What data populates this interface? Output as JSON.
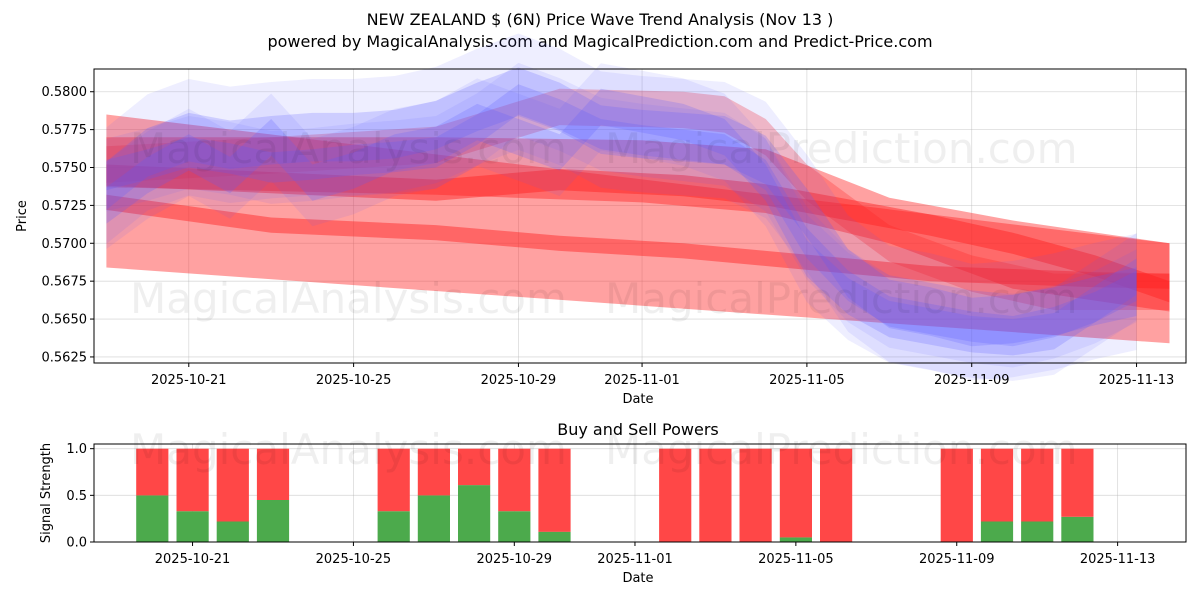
{
  "title_line1": "NEW ZEALAND $ (6N) Price Wave Trend Analysis (Nov 13 )",
  "title_line2": "powered by MagicalAnalysis.com and MagicalPrediction.com and Predict-Price.com",
  "watermarks": [
    "MagicalAnalysis.com",
    "MagicalPrediction.com"
  ],
  "chart_data": [
    {
      "type": "area",
      "title": "",
      "xlabel": "Date",
      "ylabel": "Price",
      "xlim": [
        "2025-10-18.7",
        "2025-11-14.2"
      ],
      "ylim": [
        0.5621,
        0.5815
      ],
      "x_ticks": [
        "2025-10-21",
        "2025-10-25",
        "2025-10-29",
        "2025-11-01",
        "2025-11-05",
        "2025-11-09",
        "2025-11-13"
      ],
      "y_ticks": [
        "0.5625",
        "0.5650",
        "0.5675",
        "0.5700",
        "0.5725",
        "0.5750",
        "0.5775",
        "0.5800"
      ],
      "grid": true,
      "blue_series": [
        {
          "name": "blue-wave-1",
          "x": [
            "2025-10-19",
            "2025-10-20",
            "2025-10-21",
            "2025-10-22",
            "2025-10-23",
            "2025-10-24",
            "2025-10-25",
            "2025-10-26",
            "2025-10-27",
            "2025-10-28",
            "2025-10-29",
            "2025-10-30",
            "2025-10-31",
            "2025-11-01",
            "2025-11-02",
            "2025-11-03",
            "2025-11-04",
            "2025-11-05",
            "2025-11-06",
            "2025-11-07",
            "2025-11-08",
            "2025-11-09",
            "2025-11-10",
            "2025-11-11",
            "2025-11-12",
            "2025-11-13"
          ],
          "values": [
            0.5745,
            0.5752,
            0.576,
            0.5756,
            0.575,
            0.5752,
            0.5755,
            0.5757,
            0.576,
            0.5775,
            0.5795,
            0.5785,
            0.5772,
            0.5768,
            0.5765,
            0.5762,
            0.5745,
            0.57,
            0.5672,
            0.5655,
            0.565,
            0.5645,
            0.5642,
            0.5648,
            0.5658,
            0.5672
          ],
          "half_width": 0.001
        },
        {
          "name": "blue-wave-2",
          "x": [
            "2025-10-19",
            "2025-10-20",
            "2025-10-21",
            "2025-10-22",
            "2025-10-23",
            "2025-10-24",
            "2025-10-25",
            "2025-10-26",
            "2025-10-27",
            "2025-10-28",
            "2025-10-29",
            "2025-10-30",
            "2025-10-31",
            "2025-11-01",
            "2025-11-02",
            "2025-11-03",
            "2025-11-04",
            "2025-11-05",
            "2025-11-06",
            "2025-11-07",
            "2025-11-08",
            "2025-11-09",
            "2025-11-10",
            "2025-11-11",
            "2025-11-12",
            "2025-11-13"
          ],
          "values": [
            0.5738,
            0.576,
            0.577,
            0.5765,
            0.5768,
            0.577,
            0.577,
            0.5772,
            0.5778,
            0.579,
            0.58,
            0.579,
            0.5775,
            0.5772,
            0.577,
            0.5768,
            0.5755,
            0.572,
            0.568,
            0.566,
            0.5655,
            0.5648,
            0.565,
            0.5655,
            0.5662,
            0.5668
          ],
          "half_width": 0.0016
        },
        {
          "name": "blue-wave-3",
          "x": [
            "2025-10-19",
            "2025-10-20",
            "2025-10-21",
            "2025-10-22",
            "2025-10-23",
            "2025-10-24",
            "2025-10-25",
            "2025-10-26",
            "2025-10-27",
            "2025-10-28",
            "2025-10-29",
            "2025-10-30",
            "2025-10-31",
            "2025-11-01",
            "2025-11-02",
            "2025-11-03",
            "2025-11-04",
            "2025-11-05",
            "2025-11-06",
            "2025-11-07",
            "2025-11-08",
            "2025-11-09",
            "2025-11-10",
            "2025-11-11",
            "2025-11-12",
            "2025-11-13"
          ],
          "values": [
            0.5725,
            0.5745,
            0.576,
            0.5745,
            0.577,
            0.574,
            0.5748,
            0.576,
            0.5765,
            0.578,
            0.577,
            0.576,
            0.579,
            0.5785,
            0.578,
            0.577,
            0.574,
            0.569,
            0.5665,
            0.565,
            0.5645,
            0.564,
            0.5638,
            0.5642,
            0.566,
            0.5678
          ],
          "half_width": 0.0012
        }
      ],
      "red_series": [
        {
          "name": "red-band-wide",
          "x": [
            "2025-10-19",
            "2025-11-13.8"
          ],
          "lower": [
            0.5684,
            0.5634
          ],
          "upper": [
            0.5785,
            0.57
          ]
        },
        {
          "name": "red-band-mid",
          "x": [
            "2025-10-19",
            "2025-10-27",
            "2025-11-01",
            "2025-11-04",
            "2025-11-07",
            "2025-11-10",
            "2025-11-13.8"
          ],
          "lower": [
            0.5737,
            0.5732,
            0.5727,
            0.572,
            0.57,
            0.567,
            0.5655
          ],
          "upper": [
            0.577,
            0.577,
            0.5768,
            0.5762,
            0.573,
            0.5715,
            0.57
          ]
        },
        {
          "name": "red-wave-upper",
          "x": [
            "2025-10-19",
            "2025-10-23",
            "2025-10-27",
            "2025-10-30",
            "2025-11-02",
            "2025-11-04",
            "2025-11-06",
            "2025-11-08",
            "2025-11-10",
            "2025-11-12",
            "2025-11-13.8"
          ],
          "values": [
            0.5745,
            0.574,
            0.5735,
            0.5742,
            0.5738,
            0.5732,
            0.5722,
            0.5712,
            0.57,
            0.5685,
            0.5668
          ],
          "half_width": 0.0007
        },
        {
          "name": "red-wave-lower",
          "x": [
            "2025-10-19",
            "2025-10-23",
            "2025-10-27",
            "2025-10-30",
            "2025-11-02",
            "2025-11-04",
            "2025-11-06",
            "2025-11-08",
            "2025-11-10",
            "2025-11-12",
            "2025-11-13.8"
          ],
          "values": [
            0.5727,
            0.5712,
            0.5707,
            0.57,
            0.5695,
            0.569,
            0.5685,
            0.568,
            0.5678,
            0.5676,
            0.5675
          ],
          "half_width": 0.0005
        },
        {
          "name": "red-wave-top",
          "x": [
            "2025-10-19",
            "2025-10-23",
            "2025-10-27",
            "2025-10-30",
            "2025-11-02",
            "2025-11-03",
            "2025-11-04",
            "2025-11-05",
            "2025-11-07",
            "2025-11-09",
            "2025-11-11",
            "2025-11-13.8"
          ],
          "values": [
            0.5752,
            0.5758,
            0.5765,
            0.579,
            0.5788,
            0.5785,
            0.577,
            0.574,
            0.57,
            0.568,
            0.5668,
            0.5668
          ],
          "half_width": 0.0012
        }
      ]
    },
    {
      "type": "bar",
      "title": "Buy and Sell Powers",
      "xlabel": "Date",
      "ylabel": "Signal Strength",
      "ylim": [
        0,
        1.05
      ],
      "y_ticks": [
        "0.0",
        "0.5",
        "1.0"
      ],
      "x_ticks": [
        "2025-10-21",
        "2025-10-25",
        "2025-10-29",
        "2025-11-01",
        "2025-11-05",
        "2025-11-09",
        "2025-11-13"
      ],
      "series": [
        {
          "name": "Buy",
          "color": "#4caa4c"
        },
        {
          "name": "Sell",
          "color": "#ff4747"
        }
      ],
      "bars": [
        {
          "date": "2025-10-20",
          "buy": 0.5,
          "sell": 0.5
        },
        {
          "date": "2025-10-21",
          "buy": 0.33,
          "sell": 0.67
        },
        {
          "date": "2025-10-22",
          "buy": 0.22,
          "sell": 0.78
        },
        {
          "date": "2025-10-23",
          "buy": 0.45,
          "sell": 0.55
        },
        {
          "date": "2025-10-26",
          "buy": 0.33,
          "sell": 0.67
        },
        {
          "date": "2025-10-27",
          "buy": 0.5,
          "sell": 0.5
        },
        {
          "date": "2025-10-28",
          "buy": 0.61,
          "sell": 0.39
        },
        {
          "date": "2025-10-29",
          "buy": 0.33,
          "sell": 0.67
        },
        {
          "date": "2025-10-30",
          "buy": 0.11,
          "sell": 0.89
        },
        {
          "date": "2025-11-02",
          "buy": 0.0,
          "sell": 1.0
        },
        {
          "date": "2025-11-03",
          "buy": 0.0,
          "sell": 1.0
        },
        {
          "date": "2025-11-04",
          "buy": 0.0,
          "sell": 1.0
        },
        {
          "date": "2025-11-05",
          "buy": 0.05,
          "sell": 0.95
        },
        {
          "date": "2025-11-06",
          "buy": 0.0,
          "sell": 1.0
        },
        {
          "date": "2025-11-09",
          "buy": 0.0,
          "sell": 1.0
        },
        {
          "date": "2025-11-10",
          "buy": 0.22,
          "sell": 0.78
        },
        {
          "date": "2025-11-11",
          "buy": 0.22,
          "sell": 0.78
        },
        {
          "date": "2025-11-12",
          "buy": 0.27,
          "sell": 0.73
        }
      ]
    }
  ]
}
